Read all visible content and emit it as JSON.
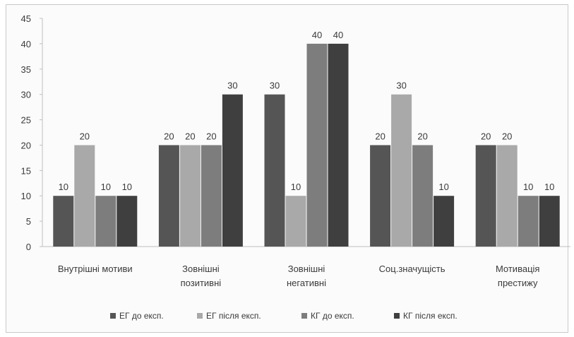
{
  "chart_data": {
    "type": "bar",
    "title": "",
    "xlabel": "",
    "ylabel": "",
    "ylim": [
      0,
      45
    ],
    "yticks": [
      0,
      5,
      10,
      15,
      20,
      25,
      30,
      35,
      40,
      45
    ],
    "grid": false,
    "legend_position": "bottom",
    "categories": [
      [
        "Внутрішні мотиви"
      ],
      [
        "Зовнішні",
        "позитивні"
      ],
      [
        "Зовнішні",
        "негативні"
      ],
      [
        "Соц.значущість"
      ],
      [
        "Мотивація",
        "престижу"
      ]
    ],
    "series": [
      {
        "name": "ЕГ до експ.",
        "color": "#555555",
        "values": [
          10,
          20,
          30,
          20,
          20
        ]
      },
      {
        "name": "ЕГ після експ.",
        "color": "#a9a9a9",
        "values": [
          20,
          20,
          10,
          30,
          20
        ]
      },
      {
        "name": "КГ до експ.",
        "color": "#7d7d7d",
        "values": [
          10,
          20,
          40,
          20,
          10
        ]
      },
      {
        "name": "КГ після експ.",
        "color": "#3f3f3f",
        "values": [
          10,
          30,
          40,
          10,
          10
        ]
      }
    ]
  }
}
